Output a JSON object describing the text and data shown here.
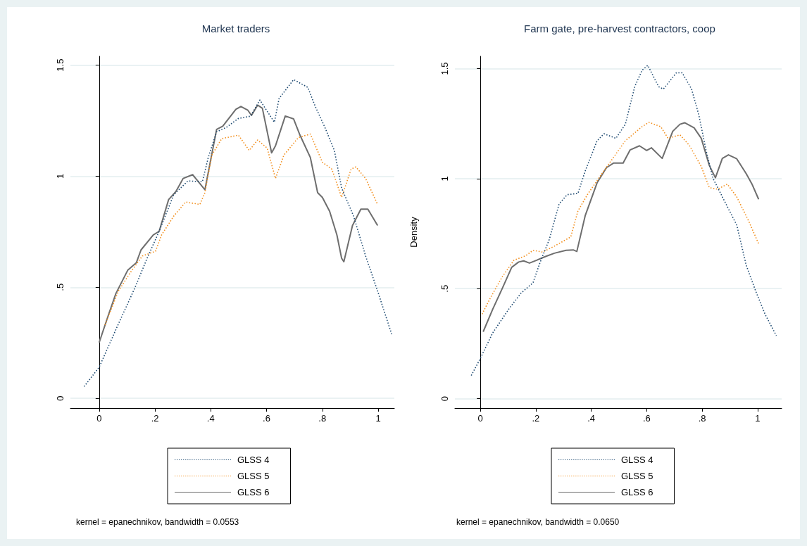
{
  "chart_data": [
    {
      "type": "line",
      "title": "Market traders",
      "xlim": [
        -0.103,
        1.058
      ],
      "ylim": [
        -0.044,
        1.54
      ],
      "xticks": [
        {
          "value": 0,
          "label": "0"
        },
        {
          "value": 0.2,
          "label": ".2"
        },
        {
          "value": 0.4,
          "label": ".4"
        },
        {
          "value": 0.6,
          "label": ".6"
        },
        {
          "value": 0.8,
          "label": ".8"
        },
        {
          "value": 1,
          "label": "1"
        }
      ],
      "yticks": [
        {
          "value": 0,
          "label": "0"
        },
        {
          "value": 0.5,
          "label": ".5"
        },
        {
          "value": 1,
          "label": "1"
        },
        {
          "value": 1.5,
          "label": "1.5"
        }
      ],
      "grid": "y",
      "legend": "bottom",
      "marker": "none",
      "annotations": [
        "kernel = epanechnikov, bandwidth = 0.0553"
      ],
      "series": [
        {
          "name": "GLSS 4",
          "color": "#1a476f",
          "line_style": "dotted",
          "x": [
            -0.054,
            0,
            0.069,
            0.129,
            0.172,
            0.215,
            0.267,
            0.318,
            0.37,
            0.391,
            0.421,
            0.456,
            0.499,
            0.542,
            0.576,
            0.628,
            0.645,
            0.697,
            0.748,
            0.774,
            0.809,
            0.843,
            0.869,
            0.912,
            0.955,
            0.998,
            1.05
          ],
          "values": [
            0.053,
            0.14,
            0.335,
            0.5,
            0.631,
            0.752,
            0.916,
            0.979,
            0.975,
            1.084,
            1.2,
            1.22,
            1.26,
            1.27,
            1.343,
            1.243,
            1.35,
            1.435,
            1.4,
            1.316,
            1.22,
            1.116,
            0.947,
            0.82,
            0.641,
            0.483,
            0.283
          ]
        },
        {
          "name": "GLSS 5",
          "color": "#f28e1c",
          "line_style": "dotted",
          "x": [
            0.021,
            0.069,
            0.112,
            0.155,
            0.202,
            0.224,
            0.267,
            0.31,
            0.361,
            0.379,
            0.404,
            0.439,
            0.499,
            0.538,
            0.568,
            0.602,
            0.632,
            0.662,
            0.714,
            0.757,
            0.8,
            0.834,
            0.869,
            0.903,
            0.92,
            0.955,
            0.998
          ],
          "values": [
            0.33,
            0.483,
            0.567,
            0.641,
            0.662,
            0.736,
            0.82,
            0.884,
            0.873,
            0.926,
            1.095,
            1.169,
            1.185,
            1.116,
            1.163,
            1.127,
            0.99,
            1.095,
            1.174,
            1.19,
            1.063,
            1.032,
            0.905,
            1.032,
            1.042,
            0.99,
            0.873
          ]
        },
        {
          "name": "GLSS 6",
          "color": "#6e6e6e",
          "line_style": "solid",
          "x": [
            0,
            0.034,
            0.06,
            0.103,
            0.133,
            0.15,
            0.194,
            0.215,
            0.249,
            0.275,
            0.301,
            0.335,
            0.379,
            0.421,
            0.443,
            0.49,
            0.508,
            0.533,
            0.546,
            0.568,
            0.585,
            0.618,
            0.632,
            0.667,
            0.697,
            0.718,
            0.757,
            0.783,
            0.8,
            0.826,
            0.852,
            0.869,
            0.877,
            0.908,
            0.938,
            0.963,
            0.998
          ],
          "values": [
            0.251,
            0.378,
            0.472,
            0.578,
            0.61,
            0.668,
            0.736,
            0.752,
            0.895,
            0.931,
            0.99,
            1.007,
            0.939,
            1.211,
            1.225,
            1.301,
            1.314,
            1.297,
            1.274,
            1.32,
            1.306,
            1.105,
            1.137,
            1.271,
            1.258,
            1.19,
            1.084,
            0.926,
            0.905,
            0.842,
            0.736,
            0.631,
            0.615,
            0.778,
            0.852,
            0.852,
            0.778
          ]
        }
      ]
    },
    {
      "type": "line",
      "title": "Farm gate, pre-harvest contractors, coop",
      "ylabel": "Density",
      "xlim": [
        -0.092,
        1.087
      ],
      "ylim": [
        -0.043,
        1.556
      ],
      "xticks": [
        {
          "value": 0,
          "label": "0"
        },
        {
          "value": 0.2,
          "label": ".2"
        },
        {
          "value": 0.4,
          "label": ".4"
        },
        {
          "value": 0.6,
          "label": ".6"
        },
        {
          "value": 0.8,
          "label": ".8"
        },
        {
          "value": 1,
          "label": "1"
        }
      ],
      "yticks": [
        {
          "value": 0,
          "label": "0"
        },
        {
          "value": 0.5,
          "label": ".5"
        },
        {
          "value": 1,
          "label": "1"
        },
        {
          "value": 1.5,
          "label": "1.5"
        }
      ],
      "grid": "y",
      "legend": "bottom",
      "marker": "none",
      "annotations": [
        "kernel = epanechnikov, bandwidth = 0.0650"
      ],
      "series": [
        {
          "name": "GLSS 4",
          "color": "#1a476f",
          "line_style": "dotted",
          "x": [
            -0.033,
            -0.003,
            0.044,
            0.104,
            0.147,
            0.19,
            0.215,
            0.249,
            0.284,
            0.313,
            0.352,
            0.378,
            0.421,
            0.446,
            0.489,
            0.523,
            0.557,
            0.583,
            0.604,
            0.643,
            0.66,
            0.707,
            0.728,
            0.762,
            0.788,
            0.814,
            0.839,
            0.882,
            0.925,
            0.959,
            0.993,
            1.027,
            1.068
          ],
          "values": [
            0.105,
            0.176,
            0.298,
            0.41,
            0.48,
            0.527,
            0.618,
            0.725,
            0.885,
            0.927,
            0.933,
            1.034,
            1.172,
            1.204,
            1.183,
            1.247,
            1.418,
            1.492,
            1.515,
            1.418,
            1.407,
            1.481,
            1.481,
            1.407,
            1.29,
            1.13,
            1.002,
            0.895,
            0.789,
            0.607,
            0.49,
            0.384,
            0.286
          ]
        },
        {
          "name": "GLSS 5",
          "color": "#f28e1c",
          "line_style": "dotted",
          "x": [
            0.006,
            0.036,
            0.079,
            0.121,
            0.164,
            0.19,
            0.224,
            0.267,
            0.326,
            0.352,
            0.386,
            0.421,
            0.463,
            0.523,
            0.583,
            0.608,
            0.651,
            0.677,
            0.72,
            0.754,
            0.797,
            0.826,
            0.856,
            0.891,
            0.925,
            0.967,
            1.006
          ],
          "values": [
            0.384,
            0.458,
            0.554,
            0.629,
            0.65,
            0.674,
            0.666,
            0.693,
            0.735,
            0.853,
            0.927,
            0.991,
            1.066,
            1.172,
            1.236,
            1.256,
            1.236,
            1.183,
            1.199,
            1.151,
            1.055,
            0.959,
            0.952,
            0.975,
            0.917,
            0.81,
            0.698
          ]
        },
        {
          "name": "GLSS 6",
          "color": "#6e6e6e",
          "line_style": "solid",
          "x": [
            0.01,
            0.044,
            0.079,
            0.113,
            0.138,
            0.156,
            0.177,
            0.203,
            0.237,
            0.267,
            0.309,
            0.335,
            0.348,
            0.378,
            0.421,
            0.455,
            0.481,
            0.515,
            0.54,
            0.574,
            0.6,
            0.617,
            0.656,
            0.694,
            0.72,
            0.737,
            0.771,
            0.797,
            0.826,
            0.848,
            0.873,
            0.895,
            0.925,
            0.959,
            0.98,
            1.004
          ],
          "values": [
            0.304,
            0.405,
            0.501,
            0.597,
            0.621,
            0.626,
            0.616,
            0.629,
            0.647,
            0.661,
            0.674,
            0.676,
            0.669,
            0.831,
            0.981,
            1.05,
            1.071,
            1.071,
            1.13,
            1.149,
            1.128,
            1.14,
            1.092,
            1.215,
            1.247,
            1.254,
            1.231,
            1.183,
            1.06,
            1.004,
            1.092,
            1.108,
            1.09,
            1.023,
            0.975,
            0.906
          ]
        }
      ]
    }
  ]
}
